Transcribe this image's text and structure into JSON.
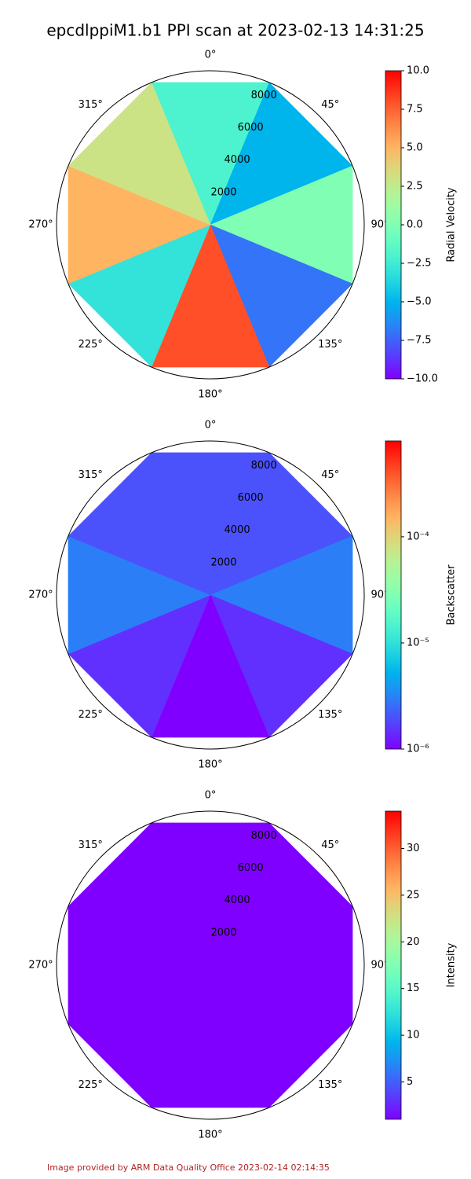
{
  "title": "epcdlppiM1.b1 PPI scan at 2023-02-13 14:31:25",
  "footer": "Image provided by ARM Data Quality Office 2023-02-14 02:14:35",
  "chart_data": [
    {
      "type": "ppi",
      "colorbar_label": "Radial Velocity",
      "colormap": "rainbow",
      "log_scale": false,
      "clim": [
        -10,
        10
      ],
      "cticks": [
        {
          "value": -10,
          "label": "−10.0"
        },
        {
          "value": -7.5,
          "label": "−7.5"
        },
        {
          "value": -5,
          "label": "−5.0"
        },
        {
          "value": -2.5,
          "label": "−2.5"
        },
        {
          "value": 0,
          "label": "0.0"
        },
        {
          "value": 2.5,
          "label": "2.5"
        },
        {
          "value": 5,
          "label": "5.0"
        },
        {
          "value": 7.5,
          "label": "7.5"
        },
        {
          "value": 10,
          "label": "10.0"
        }
      ],
      "rlim": [
        0,
        8800
      ],
      "rticks": [
        2000,
        4000,
        6000,
        8000
      ],
      "thetaticks": [
        {
          "value": 0,
          "label": "0°"
        },
        {
          "value": 45,
          "label": "45°"
        },
        {
          "value": 90,
          "label": "90°"
        },
        {
          "value": 135,
          "label": "135°"
        },
        {
          "value": 180,
          "label": "180°"
        },
        {
          "value": 225,
          "label": "225°"
        },
        {
          "value": 270,
          "label": "270°"
        },
        {
          "value": 315,
          "label": "315°"
        }
      ],
      "theta": [
        0,
        45,
        90,
        135,
        180,
        225,
        270,
        315
      ],
      "values": [
        -2,
        -5,
        0,
        -7,
        8,
        -3,
        5,
        3
      ]
    },
    {
      "type": "ppi",
      "colorbar_label": "Backscatter",
      "colormap": "rainbow",
      "log_scale": true,
      "clim": [
        1e-06,
        0.0008
      ],
      "cticks": [
        {
          "value": 1e-06,
          "label": "10⁻⁶"
        },
        {
          "value": 1e-05,
          "label": "10⁻⁵"
        },
        {
          "value": 0.0001,
          "label": "10⁻⁴"
        }
      ],
      "rlim": [
        0,
        8800
      ],
      "rticks": [
        2000,
        4000,
        6000,
        8000
      ],
      "thetaticks": [
        {
          "value": 0,
          "label": "0°"
        },
        {
          "value": 45,
          "label": "45°"
        },
        {
          "value": 90,
          "label": "90°"
        },
        {
          "value": 135,
          "label": "135°"
        },
        {
          "value": 180,
          "label": "180°"
        },
        {
          "value": 225,
          "label": "225°"
        },
        {
          "value": 270,
          "label": "270°"
        },
        {
          "value": 315,
          "label": "315°"
        }
      ],
      "theta": [
        0,
        45,
        90,
        135,
        180,
        225,
        270,
        315
      ],
      "values": [
        2e-06,
        2e-06,
        3e-06,
        1.5e-06,
        1e-06,
        1.5e-06,
        3e-06,
        2e-06
      ]
    },
    {
      "type": "ppi",
      "colorbar_label": "Intensity",
      "colormap": "rainbow",
      "log_scale": false,
      "clim": [
        1,
        34
      ],
      "cticks": [
        5,
        10,
        15,
        20,
        25,
        30
      ],
      "rlim": [
        0,
        8800
      ],
      "rticks": [
        2000,
        4000,
        6000,
        8000
      ],
      "thetaticks": [
        {
          "value": 0,
          "label": "0°"
        },
        {
          "value": 45,
          "label": "45°"
        },
        {
          "value": 90,
          "label": "90°"
        },
        {
          "value": 135,
          "label": "135°"
        },
        {
          "value": 180,
          "label": "180°"
        },
        {
          "value": 225,
          "label": "225°"
        },
        {
          "value": 270,
          "label": "270°"
        },
        {
          "value": 315,
          "label": "315°"
        }
      ],
      "theta": [
        0,
        45,
        90,
        135,
        180,
        225,
        270,
        315
      ],
      "values": [
        1,
        1,
        1,
        1,
        1,
        1,
        1,
        1
      ]
    }
  ]
}
